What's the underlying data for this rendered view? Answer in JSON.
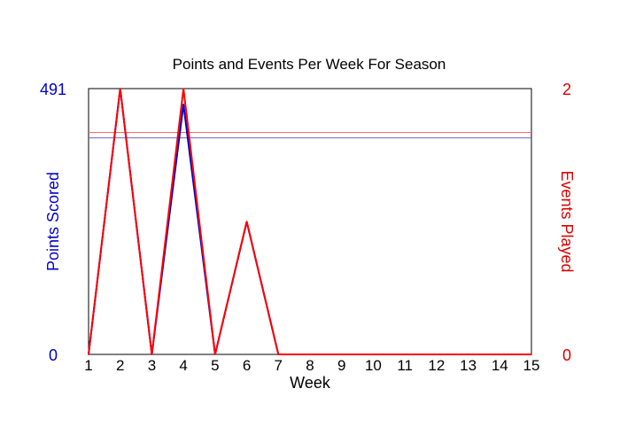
{
  "chart_data": {
    "type": "line",
    "title": "Points and Events Per Week For Season",
    "xlabel": "Week",
    "ylabel_left": "Points Scored",
    "ylabel_right": "Events Played",
    "x": [
      1,
      2,
      3,
      4,
      5,
      6,
      7,
      8,
      9,
      10,
      11,
      12,
      13,
      14,
      15
    ],
    "x_tick_labels": [
      "1",
      "2",
      "3",
      "4",
      "5",
      "6",
      "7",
      "8",
      "9",
      "10",
      "11",
      "12",
      "13",
      "14",
      "15"
    ],
    "ylim_left": [
      0,
      491
    ],
    "ylim_right": [
      0,
      2
    ],
    "y_left_tick_labels": [
      "0",
      "491"
    ],
    "y_right_tick_labels": [
      "0",
      "2"
    ],
    "series": [
      {
        "axis": "left",
        "color": "#0000cc",
        "values": [
          0,
          491,
          0,
          462,
          0,
          245,
          0,
          0,
          0,
          0,
          0,
          0,
          0,
          0,
          0
        ]
      },
      {
        "axis": "right",
        "color": "#ff0000",
        "values": [
          0,
          2,
          0,
          2,
          0,
          1,
          0,
          0,
          0,
          0,
          0,
          0,
          0,
          0,
          0
        ]
      }
    ],
    "reference_lines": [
      {
        "axis": "left",
        "value": 400,
        "color": "#6666cc"
      },
      {
        "axis": "right",
        "value": 1.67,
        "color": "#ff6666"
      }
    ],
    "grid": false,
    "legend": "none"
  },
  "colors": {
    "left_axis": "#0000cc",
    "right_axis": "#dd0000"
  }
}
